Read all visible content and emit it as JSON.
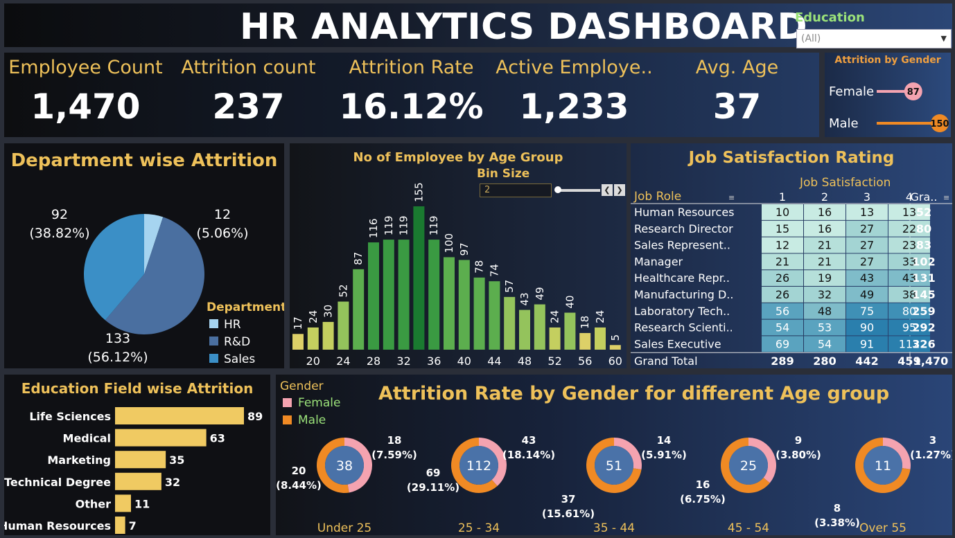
{
  "title": "HR ANALYTICS DASHBOARD",
  "filter": {
    "label": "Education",
    "value": "(All)"
  },
  "kpis": [
    {
      "label": "Employee Count",
      "value": "1,470"
    },
    {
      "label": "Attrition count",
      "value": "237"
    },
    {
      "label": "Attrition Rate",
      "value": "16.12%"
    },
    {
      "label": "Active Employe..",
      "value": "1,233"
    },
    {
      "label": "Avg. Age",
      "value": "37"
    }
  ],
  "gender_attrition": {
    "title": "Attrition by Gender",
    "items": [
      {
        "label": "Female",
        "value": 87,
        "color": "#f4a3b0"
      },
      {
        "label": "Male",
        "value": 150,
        "color": "#f08a24"
      }
    ]
  },
  "department": {
    "title": "Department wise Attrition",
    "legend_title": "Department",
    "chart_data": {
      "type": "pie",
      "categories": [
        "HR",
        "R&D",
        "Sales"
      ],
      "values": [
        12,
        133,
        92
      ],
      "percents": [
        "(5.06%)",
        "(56.12%)",
        "(38.82%)"
      ],
      "colors": [
        "#a6d4f0",
        "#4a6fa0",
        "#3b8fc6"
      ]
    }
  },
  "age_group": {
    "title": "No of Employee by Age Group",
    "bin_label": "Bin Size",
    "bin_value": "2",
    "chart_data": {
      "type": "bar",
      "x": [
        18,
        20,
        22,
        24,
        26,
        28,
        30,
        32,
        34,
        36,
        38,
        40,
        42,
        44,
        46,
        48,
        50,
        52,
        54,
        56,
        58,
        60
      ],
      "values": [
        17,
        24,
        30,
        52,
        87,
        116,
        119,
        119,
        155,
        119,
        100,
        97,
        78,
        74,
        57,
        43,
        49,
        24,
        40,
        18,
        24,
        5
      ],
      "tick_labels": [
        "20",
        "24",
        "28",
        "32",
        "36",
        "40",
        "44",
        "48",
        "52",
        "56",
        "60"
      ],
      "ylim": [
        0,
        155
      ]
    }
  },
  "job_satisfaction": {
    "title": "Job Satisfaction Rating",
    "col_group": "Job Satisfaction",
    "row_header": "Job Role",
    "columns": [
      "1",
      "2",
      "3",
      "4",
      "Gra.."
    ],
    "rows": [
      {
        "role": "Human Resources",
        "values": [
          10,
          16,
          13,
          13
        ],
        "total": "52"
      },
      {
        "role": "Research Director",
        "values": [
          15,
          16,
          27,
          22
        ],
        "total": "80"
      },
      {
        "role": "Sales Represent..",
        "values": [
          12,
          21,
          27,
          23
        ],
        "total": "83"
      },
      {
        "role": "Manager",
        "values": [
          21,
          21,
          27,
          33
        ],
        "total": "102"
      },
      {
        "role": "Healthcare Repr..",
        "values": [
          26,
          19,
          43,
          43
        ],
        "total": "131"
      },
      {
        "role": "Manufacturing D..",
        "values": [
          26,
          32,
          49,
          38
        ],
        "total": "145"
      },
      {
        "role": "Laboratory Tech..",
        "values": [
          56,
          48,
          75,
          80
        ],
        "total": "259"
      },
      {
        "role": "Research Scienti..",
        "values": [
          54,
          53,
          90,
          95
        ],
        "total": "292"
      },
      {
        "role": "Sales Executive",
        "values": [
          69,
          54,
          91,
          112
        ],
        "total": "326"
      }
    ],
    "grand_total": {
      "label": "Grand Total",
      "values": [
        "289",
        "280",
        "442",
        "459"
      ],
      "total": "1,470"
    }
  },
  "education_field": {
    "title": "Education Field wise Attrition",
    "chart_data": {
      "type": "bar",
      "categories": [
        "Life Sciences",
        "Medical",
        "Marketing",
        "Technical Degree",
        "Other",
        "Human Resources"
      ],
      "values": [
        89,
        63,
        35,
        32,
        11,
        7
      ],
      "color": "#f0ca62"
    }
  },
  "age_gender": {
    "title": "Attrition Rate by Gender for different Age group",
    "legend_title": "Gender",
    "legend": [
      {
        "label": "Female",
        "color": "#f4a3b0"
      },
      {
        "label": "Male",
        "color": "#f08a24"
      }
    ],
    "chart_data": {
      "type": "pie",
      "groups": [
        {
          "label": "Under 25",
          "total": "38",
          "female": 18,
          "female_pct": "(7.59%)",
          "male": 20,
          "male_pct": "(8.44%)"
        },
        {
          "label": "25 - 34",
          "total": "112",
          "female": 43,
          "female_pct": "(18.14%)",
          "male": 69,
          "male_pct": "(29.11%)"
        },
        {
          "label": "35 - 44",
          "total": "51",
          "female": 14,
          "female_pct": "(5.91%)",
          "male": 37,
          "male_pct": "(15.61%)"
        },
        {
          "label": "45 - 54",
          "total": "25",
          "female": 9,
          "female_pct": "(3.80%)",
          "male": 16,
          "male_pct": "(6.75%)"
        },
        {
          "label": "Over 55",
          "total": "11",
          "female": 3,
          "female_pct": "(1.27%)",
          "male": 8,
          "male_pct": "(3.38%)"
        }
      ]
    }
  }
}
